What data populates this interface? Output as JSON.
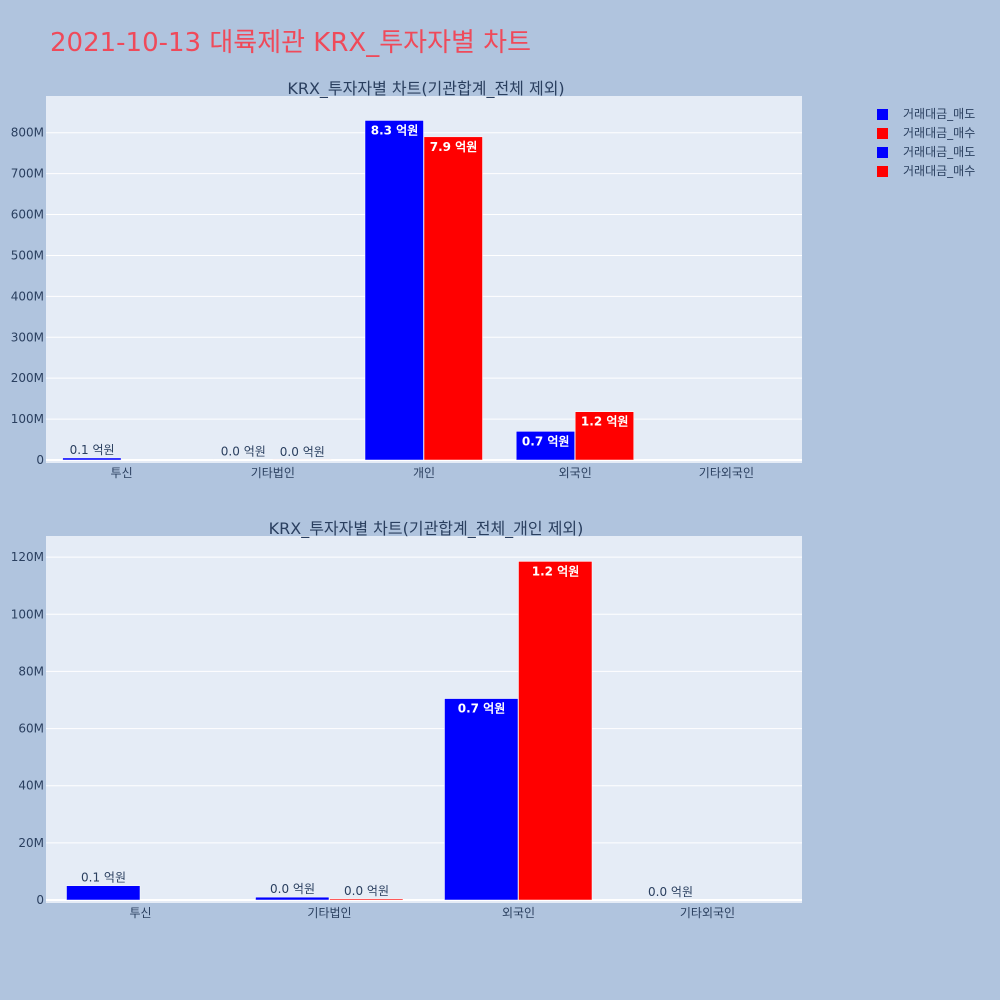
{
  "page_title": "2021-10-13 대륙제관 KRX_투자자별 차트",
  "legend": [
    {
      "label": "거래대금_매도",
      "color": "#0000ff"
    },
    {
      "label": "거래대금_매수",
      "color": "#ff0000"
    },
    {
      "label": "거래대금_매도",
      "color": "#0000ff"
    },
    {
      "label": "거래대금_매수",
      "color": "#ff0000"
    }
  ],
  "chart_data": [
    {
      "type": "bar",
      "title": "KRX_투자자별 차트(기관합계_전체 제외)",
      "categories": [
        "투신",
        "기타법인",
        "개인",
        "외국인",
        "기타외국인"
      ],
      "ylim": [
        0,
        880
      ],
      "yticks": [
        0,
        100,
        200,
        300,
        400,
        500,
        600,
        700,
        800
      ],
      "ytick_labels": [
        "0",
        "100M",
        "200M",
        "300M",
        "400M",
        "500M",
        "600M",
        "700M",
        "800M"
      ],
      "grid": true,
      "series": [
        {
          "name": "거래대금_매도",
          "color": "#0000ff",
          "values": [
            5,
            1,
            830,
            70,
            null
          ],
          "labels": [
            "0.1 억원",
            "0.0 억원",
            "8.3 억원",
            "0.7 억원",
            ""
          ]
        },
        {
          "name": "거래대금_매수",
          "color": "#ff0000",
          "values": [
            null,
            0.4,
            790,
            118,
            null
          ],
          "labels": [
            "",
            "0.0 억원",
            "7.9 억원",
            "1.2 억원",
            ""
          ]
        }
      ]
    },
    {
      "type": "bar",
      "title": "KRX_투자자별 차트(기관합계_전체_개인 제외)",
      "categories": [
        "투신",
        "기타법인",
        "외국인",
        "기타외국인"
      ],
      "ylim": [
        0,
        126
      ],
      "yticks": [
        0,
        20,
        40,
        60,
        80,
        100,
        120
      ],
      "ytick_labels": [
        "0",
        "20M",
        "40M",
        "60M",
        "80M",
        "100M",
        "120M"
      ],
      "grid": true,
      "series": [
        {
          "name": "거래대금_매도",
          "color": "#0000ff",
          "values": [
            5,
            1,
            70.5,
            0
          ],
          "labels": [
            "0.1 억원",
            "0.0 억원",
            "0.7 억원",
            "0.0 억원"
          ]
        },
        {
          "name": "거래대금_매수",
          "color": "#ff0000",
          "values": [
            null,
            0.4,
            118.5,
            null
          ],
          "labels": [
            "",
            "0.0 억원",
            "1.2 억원",
            ""
          ]
        }
      ]
    }
  ]
}
